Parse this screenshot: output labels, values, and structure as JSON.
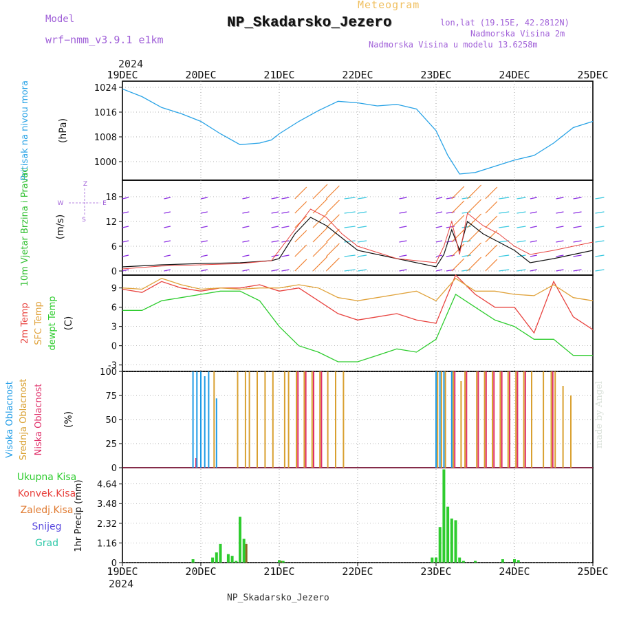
{
  "header": {
    "title": "NP_Skadarsko_Jezero",
    "meteogram_label": "Meteogram",
    "model_label": "Model",
    "model_name": "wrf−nmm_v3.9.1  e1km",
    "lonlat": "lon,lat (19.15E, 42.2812N)",
    "elevation": "Nadmorska Visina 2m",
    "model_elevation": "Nadmorska Visina u modelu 13.6258m",
    "year_top": "2024",
    "year_bottom": "2024",
    "footer_title": "NP_Skadarsko_Jezero",
    "credit": "made by Angel"
  },
  "colors": {
    "pressure": "#29a3e6",
    "temp2m": "#e8433f",
    "sfc": "#e0a23a",
    "dewpt": "#2ecc2e",
    "high_cloud": "#1e9be6",
    "mid_cloud": "#d9a030",
    "low_cloud": "#e0306a",
    "wind_label": "#2fbf2f",
    "header_purple": "#a060d8"
  },
  "chart_data": [
    {
      "type": "line",
      "panel": "pressure",
      "ylabel": "Pritisak na nivou mora",
      "unit": "(hPa)",
      "x_ticks": [
        "19DEC",
        "20DEC",
        "21DEC",
        "22DEC",
        "23DEC",
        "24DEC",
        "25DEC"
      ],
      "yticks": [
        1000,
        1008,
        1016,
        1024
      ],
      "ylim": [
        994,
        1026
      ],
      "grid": true,
      "x": [
        0,
        0.25,
        0.5,
        0.75,
        1.0,
        1.25,
        1.5,
        1.75,
        1.9,
        2.0,
        2.25,
        2.5,
        2.75,
        3.0,
        3.25,
        3.5,
        3.75,
        4.0,
        4.15,
        4.3,
        4.5,
        4.75,
        5.0,
        5.25,
        5.5,
        5.75,
        6.0
      ],
      "values": [
        1023.5,
        1021,
        1017.5,
        1015.5,
        1013,
        1009,
        1005.5,
        1006,
        1007,
        1009,
        1013,
        1016.5,
        1019.5,
        1019,
        1018,
        1018.5,
        1017,
        1010,
        1002,
        996,
        996.5,
        998.5,
        1000.5,
        1002,
        1006,
        1011,
        1013
      ]
    },
    {
      "type": "line",
      "panel": "wind",
      "ylabel": "10m Vjetar Brzina i Pravac",
      "unit": "(m/s)",
      "compass": "Z",
      "compass_w": "W",
      "compass_e": "E",
      "compass_s": "S",
      "yticks": [
        0,
        6,
        12,
        18
      ],
      "ylim": [
        -1,
        22
      ],
      "grid": true,
      "x": [
        0,
        0.5,
        1.0,
        1.5,
        1.9,
        2.0,
        2.2,
        2.4,
        2.6,
        2.8,
        3.0,
        3.5,
        4.0,
        4.1,
        4.2,
        4.3,
        4.4,
        4.6,
        4.8,
        5.0,
        5.2,
        5.5,
        5.75,
        6.0
      ],
      "values": [
        1,
        1.5,
        1.8,
        2,
        2.5,
        3,
        9,
        13,
        11,
        8,
        5,
        3,
        1,
        4,
        10,
        5,
        12,
        9,
        7,
        5,
        2,
        3,
        4,
        5
      ],
      "gust_values": [
        0.5,
        1.2,
        1.5,
        1.8,
        2.5,
        5,
        10,
        15,
        13,
        9,
        6,
        3,
        2,
        6,
        12,
        4,
        14,
        11,
        9,
        6,
        4,
        5,
        6,
        7
      ]
    },
    {
      "type": "line",
      "panel": "temperature",
      "ylabel": "2m Temp",
      "ylabel2": "SFC Temp",
      "ylabel3": "dewpt Temp",
      "unit": "(C)",
      "yticks": [
        -3,
        0,
        3,
        6,
        9
      ],
      "ylim": [
        -4,
        11
      ],
      "grid": true,
      "x": [
        0,
        0.25,
        0.5,
        0.75,
        1.0,
        1.25,
        1.5,
        1.75,
        2.0,
        2.25,
        2.5,
        2.75,
        3.0,
        3.25,
        3.5,
        3.75,
        4.0,
        4.25,
        4.5,
        4.75,
        5.0,
        5.25,
        5.5,
        5.75,
        6.0
      ],
      "series": [
        {
          "name": "2m Temp",
          "key": "temp2m",
          "values": [
            8.8,
            8.3,
            10,
            9,
            8.5,
            9,
            9,
            9.5,
            8.5,
            9,
            7,
            5,
            4,
            4.5,
            5,
            4,
            3.5,
            11,
            8,
            6,
            6,
            2,
            10,
            4.5,
            2.5
          ]
        },
        {
          "name": "SFC Temp",
          "key": "sfc",
          "values": [
            9,
            8.8,
            10.5,
            9.5,
            8.8,
            9,
            8.8,
            9,
            9,
            9.5,
            9,
            7.5,
            7,
            7.5,
            8,
            8.5,
            7,
            10.5,
            8.5,
            8.5,
            8,
            7.8,
            9.5,
            7.5,
            7
          ]
        },
        {
          "name": "dewpt Temp",
          "key": "dewpt",
          "values": [
            5.5,
            5.5,
            7,
            7.5,
            8,
            8.5,
            8.5,
            7,
            3,
            0,
            -1,
            -2.5,
            -2.5,
            -1.5,
            -0.5,
            -1,
            1,
            8,
            6,
            4,
            3,
            1,
            1,
            -1.5,
            -1.5
          ]
        }
      ]
    },
    {
      "type": "bar",
      "panel": "cloud",
      "ylabel": "Visoka Oblacnost",
      "ylabel2": "Srednja Oblacnost",
      "ylabel3": "Niska Oblacnost",
      "unit": "(%)",
      "yticks": [
        0,
        25,
        50,
        75,
        100
      ],
      "ylim": [
        0,
        100
      ],
      "grid": true,
      "x": [
        0.9,
        0.95,
        1.0,
        1.05,
        1.1,
        1.15,
        1.2,
        1.3,
        1.45,
        1.55,
        1.6,
        1.7,
        1.8,
        1.9,
        2.05,
        2.1,
        2.2,
        2.3,
        2.4,
        2.5,
        2.6,
        2.7,
        2.8,
        4.0,
        4.05,
        4.1,
        4.2,
        4.3,
        4.35,
        4.5,
        4.6,
        4.7,
        4.8,
        4.9,
        5.0,
        5.1,
        5.2,
        5.35,
        5.45,
        5.5,
        5.6,
        5.7
      ],
      "series": [
        {
          "name": "Visoka Oblacnost",
          "key": "high_cloud",
          "values": [
            100,
            100,
            100,
            95,
            100,
            0,
            72,
            0,
            0,
            0,
            0,
            0,
            0,
            0,
            0,
            0,
            0,
            0,
            0,
            0,
            0,
            0,
            0,
            100,
            100,
            100,
            100,
            0,
            0,
            0,
            0,
            0,
            0,
            0,
            0,
            0,
            0,
            0,
            0,
            0,
            0,
            0
          ]
        },
        {
          "name": "Srednja Oblacnost",
          "key": "mid_cloud",
          "values": [
            0,
            0,
            0,
            0,
            0,
            100,
            0,
            0,
            100,
            100,
            100,
            100,
            100,
            100,
            100,
            100,
            100,
            100,
            100,
            100,
            100,
            100,
            100,
            100,
            100,
            100,
            100,
            90,
            100,
            100,
            100,
            100,
            100,
            100,
            100,
            100,
            100,
            100,
            100,
            100,
            85,
            75
          ]
        },
        {
          "name": "Niska Oblacnost",
          "key": "low_cloud",
          "values": [
            10,
            0,
            0,
            0,
            0,
            0,
            0,
            0,
            0,
            0,
            0,
            0,
            0,
            0,
            0,
            0,
            100,
            100,
            100,
            100,
            0,
            0,
            0,
            0,
            0,
            0,
            100,
            0,
            100,
            100,
            100,
            100,
            100,
            100,
            100,
            100,
            0,
            0,
            100,
            0,
            0,
            0
          ]
        }
      ]
    },
    {
      "type": "bar",
      "panel": "precip",
      "ylabel": "1hr Precip (mm)",
      "legend": [
        "Ukupna Kisa",
        "Konvek.Kisa",
        "Zaledj.Kisa",
        "Snijeg",
        "Grad"
      ],
      "legend_colors": [
        "#2ecc2e",
        "#e8433f",
        "#e07a30",
        "#5a4adf",
        "#2ec8a8"
      ],
      "yticks": [
        0,
        1.16,
        2.32,
        3.48,
        4.64
      ],
      "ylim": [
        0,
        5.6
      ],
      "grid": true,
      "x": [
        0.9,
        1.15,
        1.2,
        1.25,
        1.35,
        1.4,
        1.45,
        1.5,
        1.55,
        2.0,
        2.05,
        3.95,
        4.0,
        4.05,
        4.1,
        4.15,
        4.2,
        4.25,
        4.3,
        4.35,
        4.5,
        4.85,
        5.0,
        5.05
      ],
      "values": [
        0.2,
        0.3,
        0.6,
        1.1,
        0.5,
        0.4,
        0.1,
        2.7,
        1.4,
        0.15,
        0.1,
        0.3,
        0.3,
        2.1,
        5.5,
        3.3,
        2.6,
        2.5,
        0.3,
        0.1,
        0.1,
        0.2,
        0.2,
        0.15
      ],
      "conv_values": [
        0,
        0,
        0,
        0,
        0,
        0,
        0,
        0,
        1.1,
        0.1,
        0,
        0,
        0,
        0,
        0,
        0,
        0,
        0,
        0,
        0,
        0,
        0,
        0,
        0
      ]
    }
  ]
}
